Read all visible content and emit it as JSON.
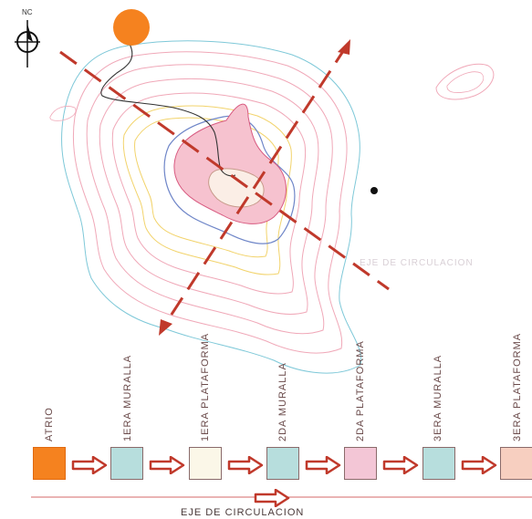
{
  "north": {
    "label": "NC"
  },
  "map": {
    "faint_label": "EJE DE CIRCULACION"
  },
  "sequence": [
    {
      "label": "ATRIO",
      "color": "#f5821f"
    },
    {
      "label": "1ERA MURALLA",
      "color": "#b7dedd"
    },
    {
      "label": "1ERA PLATAFORMA",
      "color": "#fbf7e8"
    },
    {
      "label": "2DA MURALLA",
      "color": "#b7dedd"
    },
    {
      "label": "2DA PLATAFORMA",
      "color": "#f3c6d6"
    },
    {
      "label": "3ERA MURALLA",
      "color": "#b7dedd"
    },
    {
      "label": "3ERA PLATAFORMA",
      "color": "#f7cfc0"
    }
  ],
  "axis": {
    "caption": "EJE DE CIRCULACION"
  },
  "colors": {
    "arrow_red": "#c0392b",
    "atrio_orange": "#f5821f",
    "contour_cyan": "#7ec8d8",
    "contour_pink": "#f0a8b8",
    "contour_yellow": "#f2d36b",
    "contour_blue": "#6f86c8",
    "summit_fill": "#f6c2cf"
  }
}
